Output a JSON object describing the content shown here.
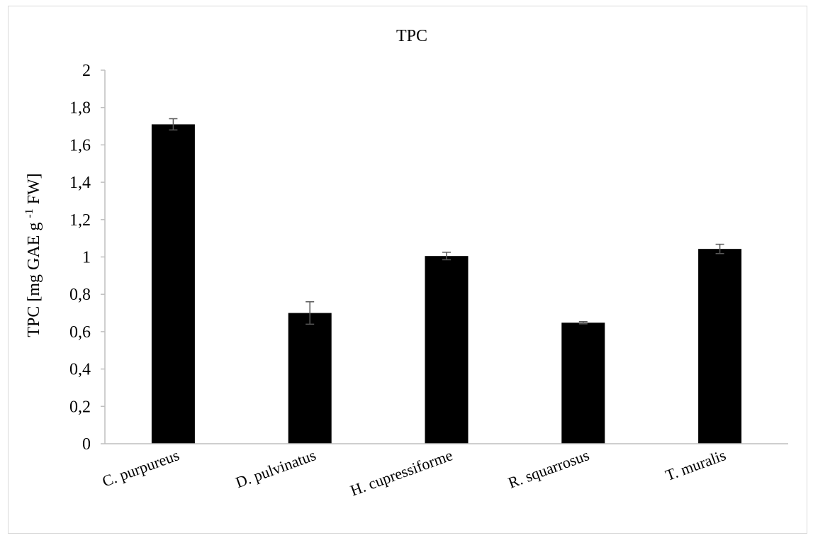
{
  "chart_data": {
    "type": "bar",
    "title": "TPC",
    "ylabel": "TPC [mg GAE g -1 FW]",
    "xlabel": "",
    "categories": [
      "C. purpureus",
      "D. pulvinatus",
      "H. cupressiforme",
      "R. squarrosus",
      "T. muralis"
    ],
    "values": [
      1.71,
      0.7,
      1.005,
      0.648,
      1.043
    ],
    "error": [
      0.03,
      0.06,
      0.02,
      0.006,
      0.025
    ],
    "ylim": [
      0,
      2
    ],
    "yticks": [
      "0",
      "0,2",
      "0,4",
      "0,6",
      "0,8",
      "1",
      "1,2",
      "1,4",
      "1,6",
      "1,8",
      "2"
    ],
    "grid": false,
    "bar_color": "#000000"
  }
}
